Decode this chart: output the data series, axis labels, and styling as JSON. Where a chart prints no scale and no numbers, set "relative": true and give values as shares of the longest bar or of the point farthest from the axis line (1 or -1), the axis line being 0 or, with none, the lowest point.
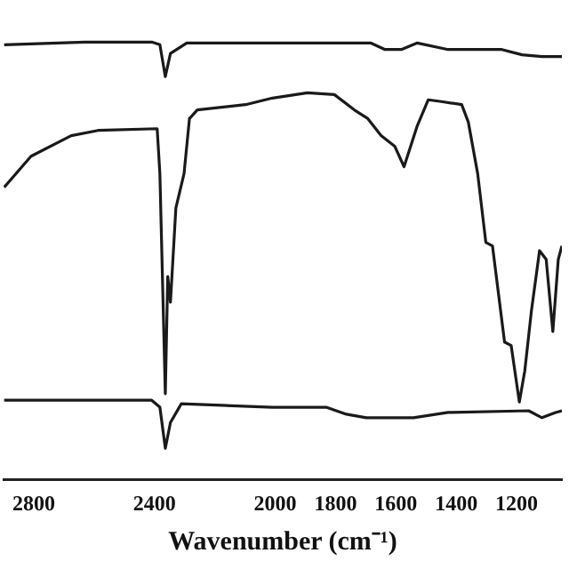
{
  "chart_data": {
    "type": "line",
    "relative": true,
    "xlabel": "Wavenumber (cm⁻¹)",
    "xlim": [
      2900,
      1050
    ],
    "xticks": [
      2800,
      2400,
      2000,
      1800,
      1600,
      1400,
      1200
    ],
    "grid": false,
    "legend": false,
    "tick_labels": "x",
    "marker": "none",
    "line_style": "solid",
    "series": [
      {
        "color": "#1a1a1a",
        "x": [
          2898,
          2631,
          2409,
          2382,
          2364,
          2347,
          2293,
          1684,
          1636,
          1582,
          1529,
          1427,
          1249,
          1182,
          1116,
          1050
        ],
        "values": [
          0.994,
          1.0,
          1.0,
          0.994,
          0.921,
          0.974,
          0.998,
          0.998,
          0.983,
          0.983,
          0.998,
          0.983,
          0.983,
          0.971,
          0.967,
          0.967
        ]
      },
      {
        "color": "#1a1a1a",
        "x": [
          2898,
          2809,
          2676,
          2587,
          2391,
          2382,
          2364,
          2356,
          2347,
          2329,
          2302,
          2284,
          2258,
          2098,
          2009,
          1893,
          1804,
          1738,
          1693,
          1649,
          1604,
          1573,
          1529,
          1493,
          1449,
          1382,
          1360,
          1329,
          1302,
          1280,
          1240,
          1218,
          1191,
          1173,
          1151,
          1124,
          1102,
          1080,
          1062,
          1050
        ],
        "values": [
          0.668,
          0.739,
          0.786,
          0.798,
          0.802,
          0.699,
          0.196,
          0.464,
          0.405,
          0.621,
          0.699,
          0.825,
          0.845,
          0.857,
          0.872,
          0.884,
          0.88,
          0.845,
          0.825,
          0.786,
          0.762,
          0.715,
          0.809,
          0.868,
          0.864,
          0.857,
          0.817,
          0.699,
          0.542,
          0.534,
          0.314,
          0.306,
          0.177,
          0.248,
          0.385,
          0.523,
          0.503,
          0.338,
          0.503,
          0.534
        ]
      },
      {
        "color": "#1a1a1a",
        "x": [
          2898,
          2409,
          2382,
          2364,
          2347,
          2311,
          2009,
          1831,
          1764,
          1698,
          1542,
          1427,
          1160,
          1116,
          1071,
          1050
        ],
        "values": [
          0.181,
          0.181,
          0.165,
          0.071,
          0.13,
          0.173,
          0.165,
          0.165,
          0.149,
          0.141,
          0.141,
          0.153,
          0.157,
          0.141,
          0.153,
          0.157
        ]
      }
    ]
  }
}
